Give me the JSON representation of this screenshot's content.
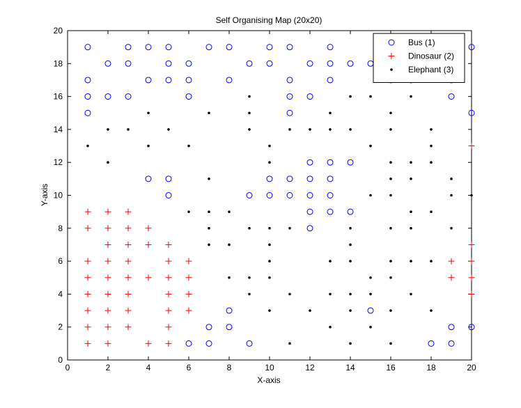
{
  "chart_data": {
    "type": "scatter",
    "title": "Self Organising Map (20x20)",
    "xlabel": "X-axis",
    "ylabel": "Y-axis",
    "xlim": [
      0,
      20
    ],
    "ylim": [
      0,
      20
    ],
    "xticks": [
      0,
      2,
      4,
      6,
      8,
      10,
      12,
      14,
      16,
      18,
      20
    ],
    "yticks": [
      0,
      2,
      4,
      6,
      8,
      10,
      12,
      14,
      16,
      18,
      20
    ],
    "grid": false,
    "legend_position": "top-right",
    "series": [
      {
        "name": "Bus (1)",
        "marker": "circle",
        "color": "#0000ff",
        "points": [
          [
            1,
            19
          ],
          [
            3,
            19
          ],
          [
            4,
            19
          ],
          [
            5,
            19
          ],
          [
            7,
            19
          ],
          [
            8,
            19
          ],
          [
            10,
            19
          ],
          [
            11,
            19
          ],
          [
            13,
            19
          ],
          [
            20,
            19
          ],
          [
            2,
            18
          ],
          [
            3,
            18
          ],
          [
            5,
            18
          ],
          [
            6,
            18
          ],
          [
            9,
            18
          ],
          [
            10,
            18
          ],
          [
            12,
            18
          ],
          [
            13,
            18
          ],
          [
            14,
            18
          ],
          [
            15,
            18
          ],
          [
            1,
            17
          ],
          [
            4,
            17
          ],
          [
            5,
            17
          ],
          [
            6,
            17
          ],
          [
            8,
            17
          ],
          [
            11,
            17
          ],
          [
            13,
            17
          ],
          [
            16,
            17
          ],
          [
            17,
            17
          ],
          [
            19,
            17
          ],
          [
            1,
            16
          ],
          [
            2,
            16
          ],
          [
            3,
            16
          ],
          [
            6,
            16
          ],
          [
            11,
            16
          ],
          [
            12,
            16
          ],
          [
            19,
            16
          ],
          [
            1,
            15
          ],
          [
            11,
            15
          ],
          [
            20,
            15
          ],
          [
            12,
            12
          ],
          [
            13,
            12
          ],
          [
            14,
            12
          ],
          [
            4,
            11
          ],
          [
            5,
            11
          ],
          [
            10,
            11
          ],
          [
            11,
            11
          ],
          [
            12,
            11
          ],
          [
            13,
            11
          ],
          [
            5,
            10
          ],
          [
            9,
            10
          ],
          [
            10,
            10
          ],
          [
            11,
            10
          ],
          [
            12,
            10
          ],
          [
            13,
            10
          ],
          [
            12,
            9
          ],
          [
            13,
            9
          ],
          [
            14,
            9
          ],
          [
            12,
            8
          ],
          [
            8,
            3
          ],
          [
            15,
            3
          ],
          [
            7,
            2
          ],
          [
            8,
            2
          ],
          [
            19,
            2
          ],
          [
            20,
            2
          ],
          [
            6,
            1
          ],
          [
            7,
            1
          ],
          [
            9,
            1
          ],
          [
            18,
            1
          ],
          [
            19,
            1
          ]
        ]
      },
      {
        "name": "Dinosaur (2)",
        "marker": "plus",
        "color": "#ff0000",
        "points": [
          [
            20,
            13
          ],
          [
            1,
            9
          ],
          [
            2,
            9
          ],
          [
            3,
            9
          ],
          [
            1,
            8
          ],
          [
            2,
            8
          ],
          [
            3,
            8
          ],
          [
            4,
            8
          ],
          [
            2,
            7
          ],
          [
            3,
            7
          ],
          [
            4,
            7
          ],
          [
            5,
            7
          ],
          [
            20,
            7
          ],
          [
            1,
            6
          ],
          [
            2,
            6
          ],
          [
            3,
            6
          ],
          [
            5,
            6
          ],
          [
            6,
            6
          ],
          [
            19,
            6
          ],
          [
            20,
            6
          ],
          [
            1,
            5
          ],
          [
            2,
            5
          ],
          [
            3,
            5
          ],
          [
            4,
            5
          ],
          [
            5,
            5
          ],
          [
            6,
            5
          ],
          [
            19,
            5
          ],
          [
            20,
            5
          ],
          [
            1,
            4
          ],
          [
            2,
            4
          ],
          [
            3,
            4
          ],
          [
            5,
            4
          ],
          [
            6,
            4
          ],
          [
            20,
            4
          ],
          [
            1,
            3
          ],
          [
            2,
            3
          ],
          [
            3,
            3
          ],
          [
            5,
            3
          ],
          [
            6,
            3
          ],
          [
            1,
            2
          ],
          [
            2,
            2
          ],
          [
            3,
            2
          ],
          [
            5,
            2
          ],
          [
            1,
            1
          ],
          [
            2,
            1
          ],
          [
            4,
            1
          ],
          [
            5,
            1
          ]
        ]
      },
      {
        "name": "Elephant (3)",
        "marker": "point",
        "color": "#000000",
        "points": [
          [
            9,
            16
          ],
          [
            14,
            16
          ],
          [
            15,
            16
          ],
          [
            17,
            16
          ],
          [
            4,
            15
          ],
          [
            7,
            15
          ],
          [
            9,
            15
          ],
          [
            13,
            15
          ],
          [
            16,
            15
          ],
          [
            2,
            14
          ],
          [
            3,
            14
          ],
          [
            5,
            14
          ],
          [
            9,
            14
          ],
          [
            11,
            14
          ],
          [
            12,
            14
          ],
          [
            13,
            14
          ],
          [
            14,
            14
          ],
          [
            16,
            14
          ],
          [
            18,
            14
          ],
          [
            1,
            13
          ],
          [
            4,
            13
          ],
          [
            6,
            13
          ],
          [
            10,
            13
          ],
          [
            15,
            13
          ],
          [
            18,
            13
          ],
          [
            2,
            12
          ],
          [
            10,
            12
          ],
          [
            16,
            12
          ],
          [
            17,
            12
          ],
          [
            18,
            12
          ],
          [
            7,
            11
          ],
          [
            16,
            11
          ],
          [
            17,
            11
          ],
          [
            19,
            11
          ],
          [
            15,
            10
          ],
          [
            16,
            10
          ],
          [
            19,
            10
          ],
          [
            20,
            10
          ],
          [
            6,
            9
          ],
          [
            7,
            9
          ],
          [
            8,
            9
          ],
          [
            17,
            9
          ],
          [
            18,
            9
          ],
          [
            7,
            8
          ],
          [
            9,
            8
          ],
          [
            10,
            8
          ],
          [
            11,
            8
          ],
          [
            14,
            8
          ],
          [
            16,
            8
          ],
          [
            17,
            8
          ],
          [
            19,
            8
          ],
          [
            7,
            7
          ],
          [
            8,
            7
          ],
          [
            10,
            7
          ],
          [
            14,
            7
          ],
          [
            10,
            6
          ],
          [
            13,
            6
          ],
          [
            14,
            6
          ],
          [
            16,
            6
          ],
          [
            17,
            6
          ],
          [
            18,
            6
          ],
          [
            8,
            5
          ],
          [
            9,
            5
          ],
          [
            10,
            5
          ],
          [
            15,
            5
          ],
          [
            16,
            5
          ],
          [
            9,
            4
          ],
          [
            11,
            4
          ],
          [
            13,
            4
          ],
          [
            14,
            4
          ],
          [
            15,
            4
          ],
          [
            17,
            4
          ],
          [
            10,
            3
          ],
          [
            12,
            3
          ],
          [
            14,
            3
          ],
          [
            16,
            3
          ],
          [
            18,
            3
          ],
          [
            13,
            2
          ],
          [
            15,
            2
          ],
          [
            11,
            1
          ],
          [
            14,
            1
          ],
          [
            16,
            1
          ]
        ]
      }
    ]
  }
}
